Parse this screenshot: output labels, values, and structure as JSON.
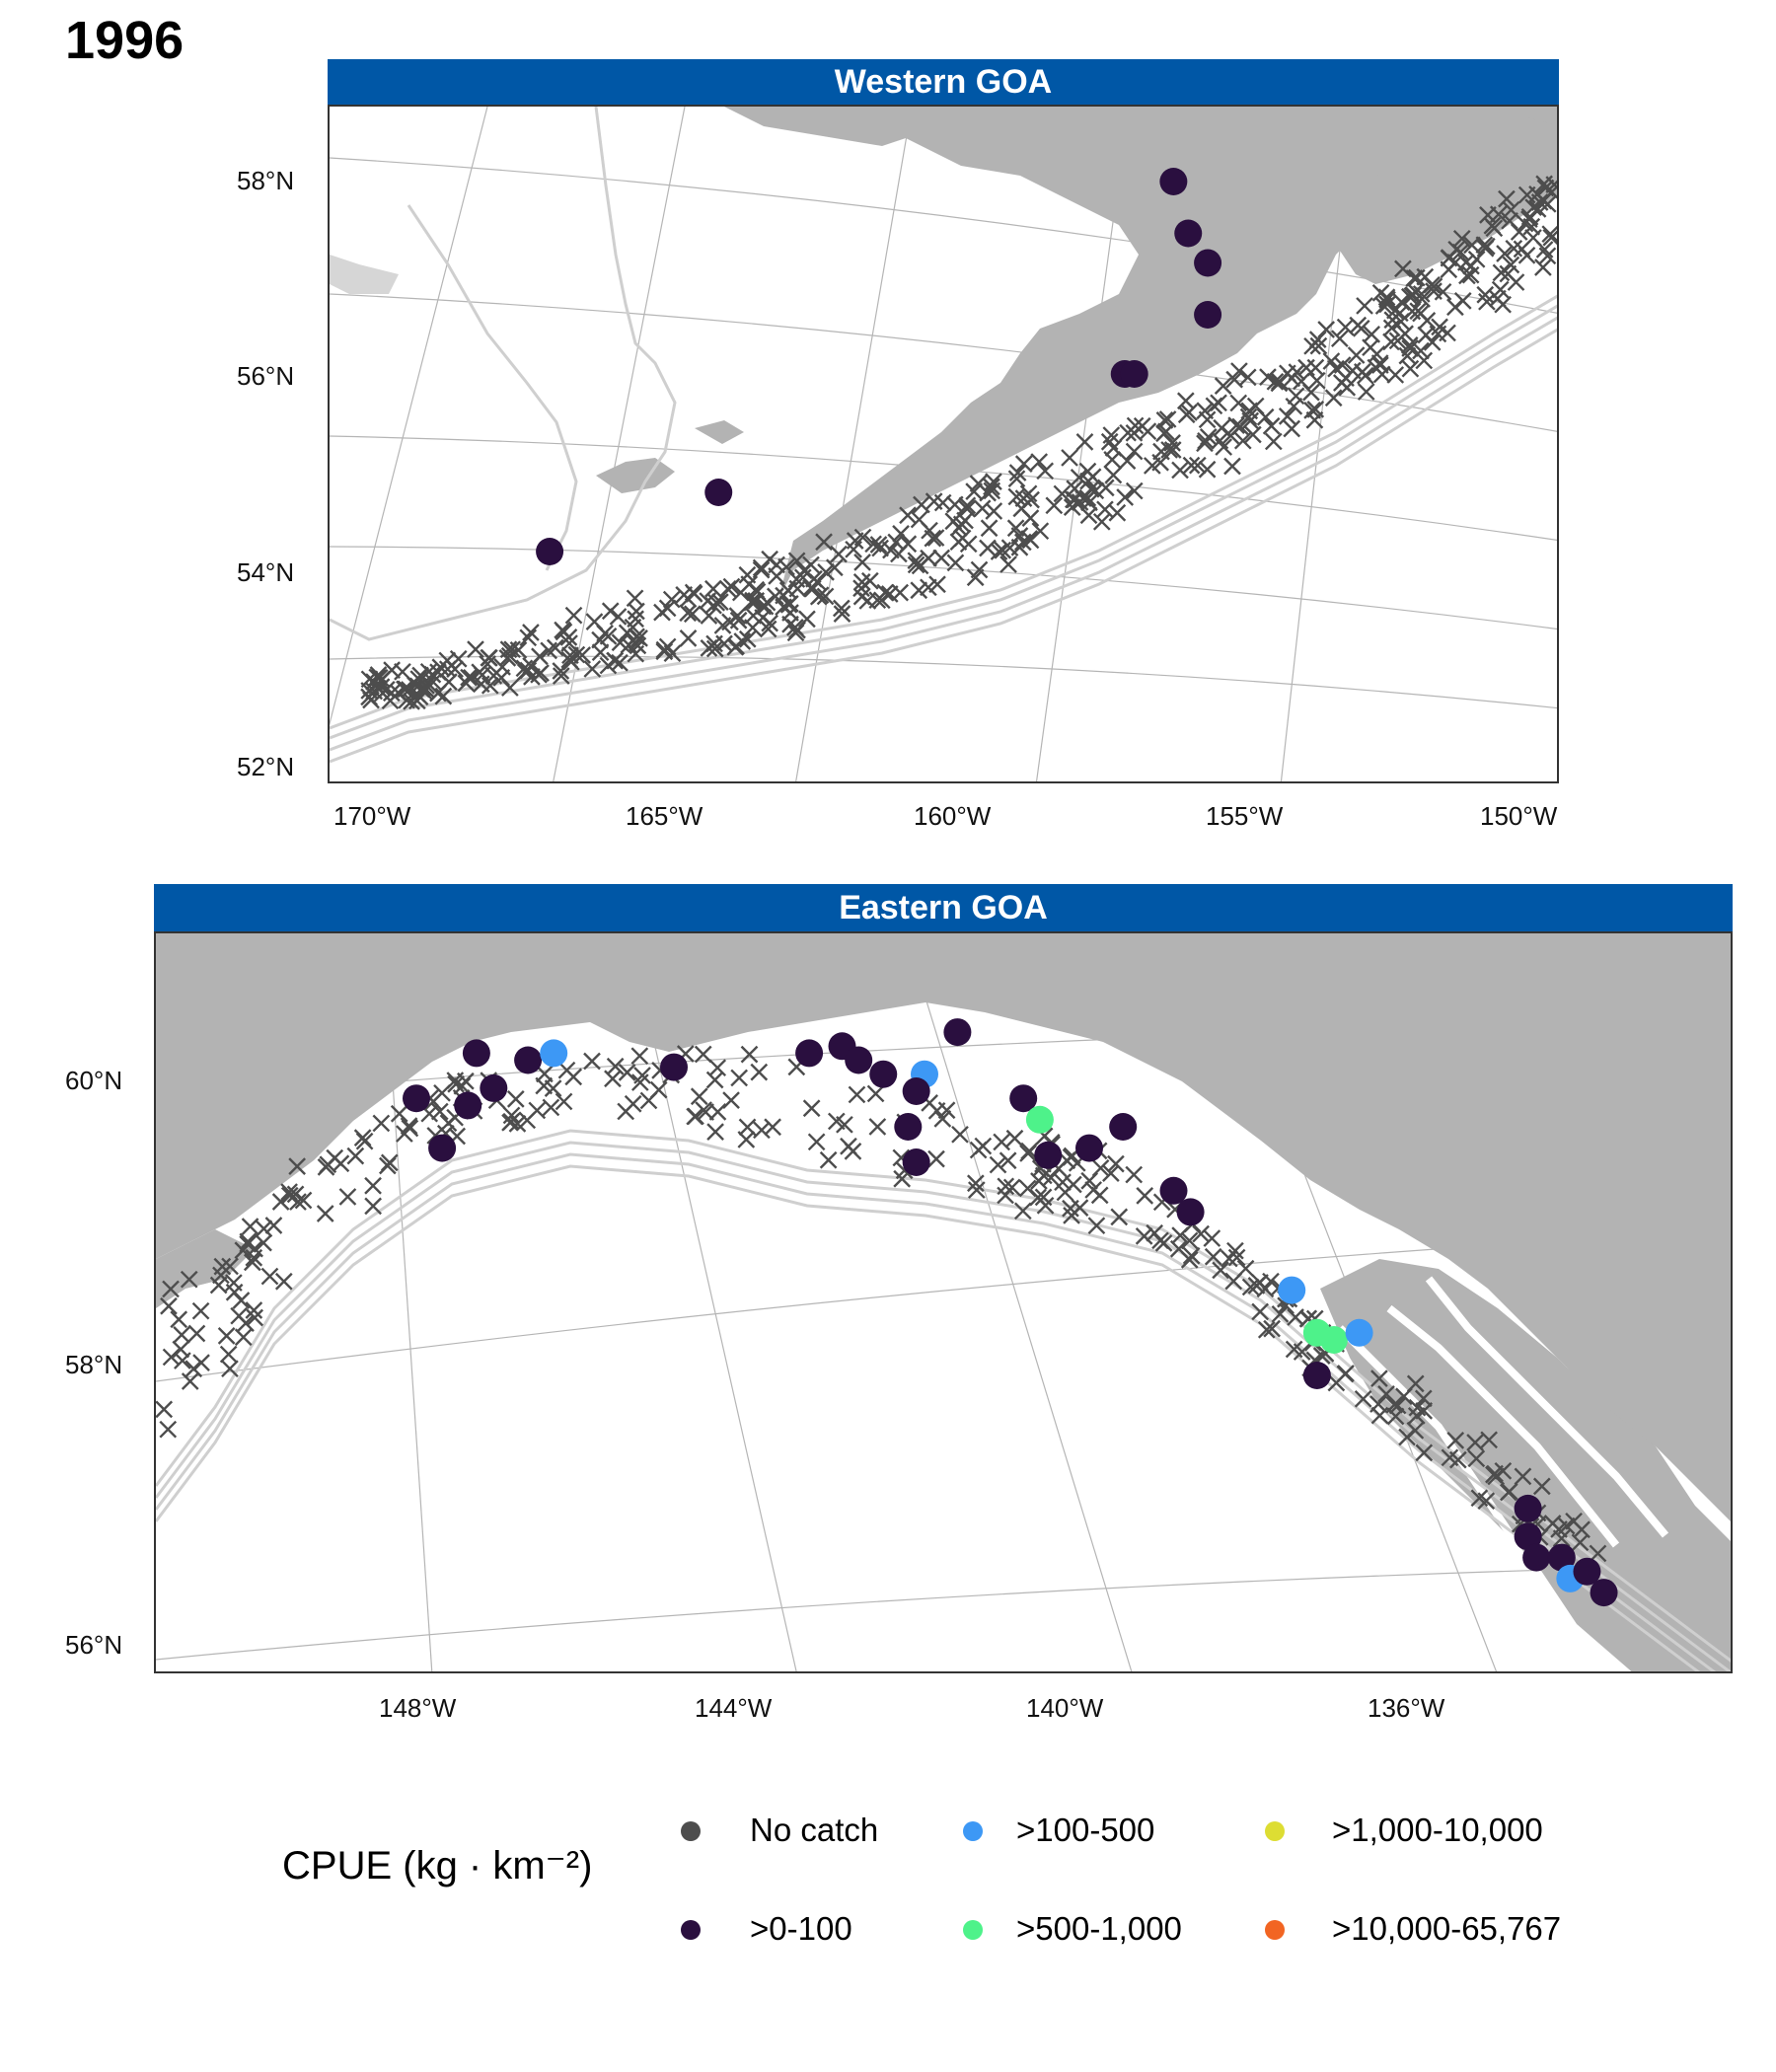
{
  "title": "1996",
  "colors": {
    "land": "#b3b3b3",
    "contour": "#cfcfcf",
    "strip": "#0057a6",
    "no_catch": "#4d4d4d",
    "c1": "#2a0f3f",
    "c2": "#3d98f5",
    "c3": "#4ef28a",
    "c4": "#dddd33",
    "c5": "#f26522"
  },
  "panels": [
    {
      "id": "west",
      "strip_label": "Western GOA",
      "y_ticks": [
        "58°N",
        "56°N",
        "54°N",
        "52°N"
      ],
      "x_ticks": [
        "170°W",
        "165°W",
        "160°W",
        "155°W",
        "150°W"
      ]
    },
    {
      "id": "east",
      "strip_label": "Eastern GOA",
      "y_ticks": [
        "60°N",
        "58°N",
        "56°N"
      ],
      "x_ticks": [
        "148°W",
        "144°W",
        "140°W",
        "136°W"
      ]
    }
  ],
  "chart_data": {
    "type": "scatter",
    "legend_title": "CPUE (kg · km⁻²)",
    "legend_placement": "bottom",
    "legend": [
      {
        "label": "No catch",
        "color": "#4d4d4d"
      },
      {
        "label": ">0-100",
        "color": "#2a0f3f"
      },
      {
        "label": ">100-500",
        "color": "#3d98f5"
      },
      {
        "label": ">500-1,000",
        "color": "#4ef28a"
      },
      {
        "label": ">1,000-10,000",
        "color": "#dddd33"
      },
      {
        "label": ">10,000-65,767",
        "color": "#f26522"
      }
    ],
    "west_catch": [
      {
        "lon": -153.4,
        "lat": 58.0,
        "cat": 1
      },
      {
        "lon": -153.1,
        "lat": 57.3,
        "cat": 1
      },
      {
        "lon": -152.7,
        "lat": 56.9,
        "cat": 1
      },
      {
        "lon": -152.7,
        "lat": 56.2,
        "cat": 1
      },
      {
        "lon": -154.4,
        "lat": 55.4,
        "cat": 1
      },
      {
        "lon": -154.2,
        "lat": 55.4,
        "cat": 1
      },
      {
        "lon": -162.8,
        "lat": 53.8,
        "cat": 1
      },
      {
        "lon": -166.3,
        "lat": 53.0,
        "cat": 1
      }
    ],
    "east_catch": [
      {
        "lon": -147.3,
        "lat": 60.3,
        "cat": 1
      },
      {
        "lon": -146.7,
        "lat": 60.25,
        "cat": 1
      },
      {
        "lon": -146.4,
        "lat": 60.3,
        "cat": 2
      },
      {
        "lon": -148.0,
        "lat": 59.95,
        "cat": 1
      },
      {
        "lon": -147.4,
        "lat": 59.9,
        "cat": 1
      },
      {
        "lon": -147.1,
        "lat": 60.05,
        "cat": 1
      },
      {
        "lon": -147.7,
        "lat": 59.6,
        "cat": 1
      },
      {
        "lon": -145.0,
        "lat": 60.2,
        "cat": 1
      },
      {
        "lon": -143.4,
        "lat": 60.3,
        "cat": 1
      },
      {
        "lon": -143.0,
        "lat": 60.35,
        "cat": 1
      },
      {
        "lon": -142.8,
        "lat": 60.25,
        "cat": 1
      },
      {
        "lon": -142.5,
        "lat": 60.15,
        "cat": 1
      },
      {
        "lon": -142.0,
        "lat": 60.15,
        "cat": 2
      },
      {
        "lon": -142.1,
        "lat": 60.0,
        "cat": 1
      },
      {
        "lon": -142.2,
        "lat": 59.75,
        "cat": 1
      },
      {
        "lon": -142.1,
        "lat": 59.5,
        "cat": 1
      },
      {
        "lon": -141.6,
        "lat": 60.45,
        "cat": 1
      },
      {
        "lon": -140.8,
        "lat": 59.95,
        "cat": 1
      },
      {
        "lon": -140.6,
        "lat": 59.8,
        "cat": 3
      },
      {
        "lon": -140.5,
        "lat": 59.55,
        "cat": 1
      },
      {
        "lon": -140.0,
        "lat": 59.6,
        "cat": 1
      },
      {
        "lon": -139.6,
        "lat": 59.75,
        "cat": 1
      },
      {
        "lon": -139.0,
        "lat": 59.3,
        "cat": 1
      },
      {
        "lon": -138.8,
        "lat": 59.15,
        "cat": 1
      },
      {
        "lon": -137.6,
        "lat": 58.6,
        "cat": 2
      },
      {
        "lon": -137.3,
        "lat": 58.3,
        "cat": 3
      },
      {
        "lon": -137.1,
        "lat": 58.25,
        "cat": 3
      },
      {
        "lon": -136.8,
        "lat": 58.3,
        "cat": 2
      },
      {
        "lon": -137.3,
        "lat": 58.0,
        "cat": 1
      },
      {
        "lon": -134.8,
        "lat": 57.05,
        "cat": 1
      },
      {
        "lon": -134.8,
        "lat": 56.85,
        "cat": 1
      },
      {
        "lon": -134.7,
        "lat": 56.7,
        "cat": 1
      },
      {
        "lon": -134.4,
        "lat": 56.7,
        "cat": 1
      },
      {
        "lon": -134.3,
        "lat": 56.55,
        "cat": 2
      },
      {
        "lon": -134.1,
        "lat": 56.6,
        "cat": 1
      },
      {
        "lon": -133.9,
        "lat": 56.45,
        "cat": 1
      }
    ]
  }
}
